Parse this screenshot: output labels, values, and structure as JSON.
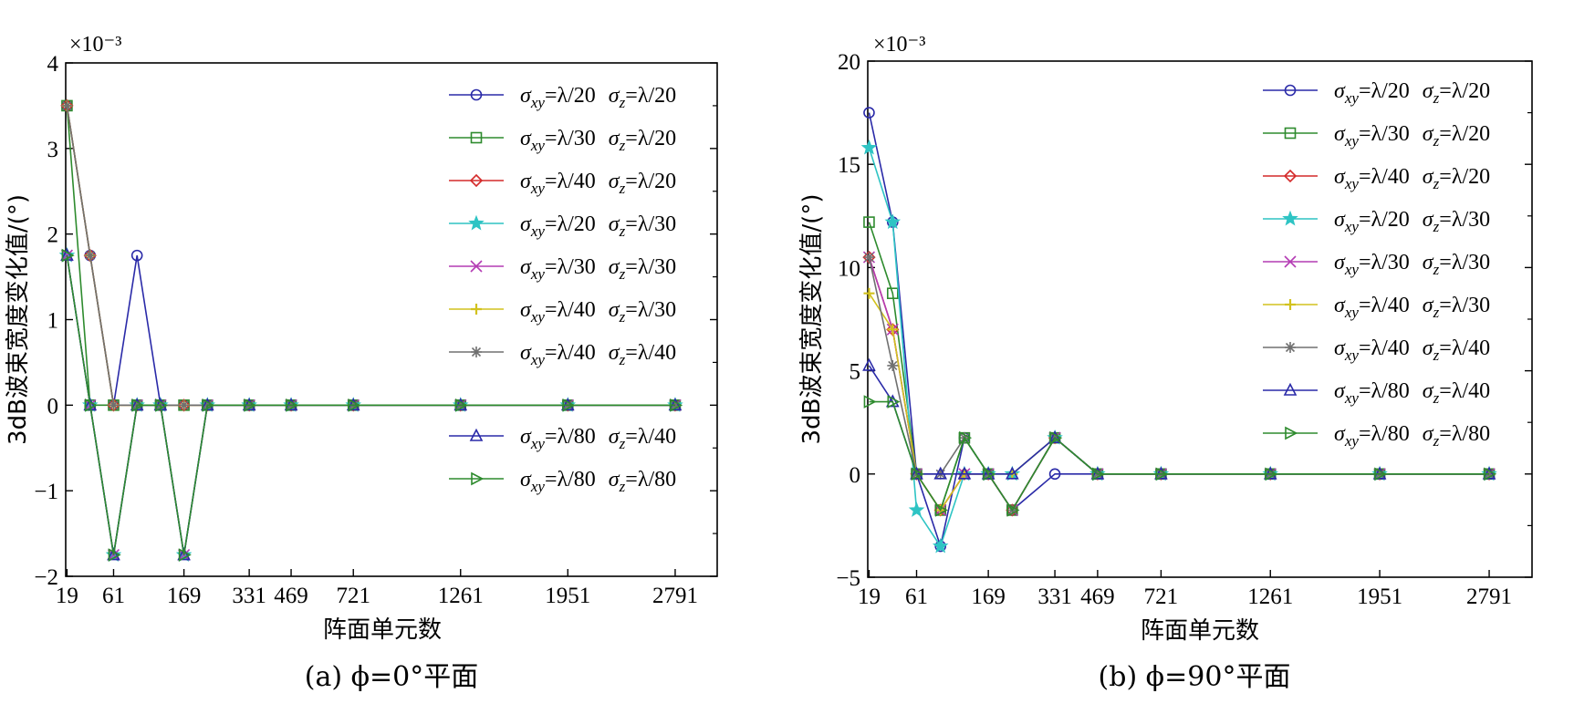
{
  "chart_data": [
    {
      "type": "line",
      "caption": "(a) ϕ=0°平面",
      "xlabel": "阵面单元数",
      "ylabel": "3dB波束宽度变化值/(°)",
      "y_multiplier_label": "×10⁻³",
      "x": [
        19,
        37,
        61,
        91,
        127,
        169,
        217,
        331,
        469,
        721,
        1261,
        1951,
        2791
      ],
      "x_tick_labels": [
        "19",
        "61",
        "169",
        "331",
        "469",
        "721",
        "1261",
        "1951",
        "2791"
      ],
      "y_ticks": [
        -2,
        -1,
        0,
        1,
        2,
        3,
        4
      ],
      "y_tick_labels": [
        "−2",
        "−1",
        "0",
        "1",
        "2",
        "3",
        "4"
      ],
      "ylim": [
        -2,
        4
      ],
      "grid": false,
      "legend_position": "top-right",
      "series": [
        {
          "name": "σxy=λ/20 σz=λ/20",
          "color": "#2a2aa8",
          "marker": "circle",
          "values": [
            3.5,
            1.75,
            0,
            1.75,
            0,
            0,
            0,
            0,
            0,
            0,
            0,
            0,
            0
          ]
        },
        {
          "name": "σxy=λ/30 σz=λ/20",
          "color": "#2e8b2e",
          "marker": "square",
          "values": [
            3.5,
            0,
            0,
            0,
            0,
            0,
            0,
            0,
            0,
            0,
            0,
            0,
            0
          ]
        },
        {
          "name": "σxy=λ/40 σz=λ/20",
          "color": "#d42a2a",
          "marker": "diamond",
          "values": [
            3.5,
            1.75,
            0,
            0,
            0,
            0,
            0,
            0,
            0,
            0,
            0,
            0,
            0
          ]
        },
        {
          "name": "σxy=λ/20 σz=λ/30",
          "color": "#2ec4c4",
          "marker": "star",
          "values": [
            1.75,
            0,
            -1.75,
            0,
            0,
            -1.75,
            0,
            0,
            0,
            0,
            0,
            0,
            0
          ]
        },
        {
          "name": "σxy=λ/30 σz=λ/30",
          "color": "#b43cb4",
          "marker": "x",
          "values": [
            1.75,
            0,
            -1.75,
            0,
            0,
            -1.75,
            0,
            0,
            0,
            0,
            0,
            0,
            0
          ]
        },
        {
          "name": "σxy=λ/40 σz=λ/30",
          "color": "#d2c21e",
          "marker": "plus",
          "values": [
            3.5,
            1.75,
            0,
            0,
            0,
            0,
            0,
            0,
            0,
            0,
            0,
            0,
            0
          ]
        },
        {
          "name": "σxy=λ/40 σz=λ/40",
          "color": "#707070",
          "marker": "asterisk",
          "values": [
            3.5,
            1.75,
            0,
            0,
            0,
            0,
            0,
            0,
            0,
            0,
            0,
            0,
            0
          ]
        },
        {
          "name": "σxy=λ/80 σz=λ/40",
          "color": "#2a2aa8",
          "marker": "triangle",
          "values": [
            1.75,
            0,
            -1.75,
            0,
            0,
            -1.75,
            0,
            0,
            0,
            0,
            0,
            0,
            0
          ]
        },
        {
          "name": "σxy=λ/80 σz=λ/80",
          "color": "#2e8b2e",
          "marker": "triangle-right",
          "values": [
            1.75,
            0,
            -1.75,
            0,
            0,
            -1.75,
            0,
            0,
            0,
            0,
            0,
            0,
            0
          ]
        }
      ]
    },
    {
      "type": "line",
      "caption": "(b) ϕ=90°平面",
      "xlabel": "阵面单元数",
      "ylabel": "3dB波束宽度变化值/(°)",
      "y_multiplier_label": "×10⁻³",
      "x": [
        19,
        37,
        61,
        91,
        127,
        169,
        217,
        331,
        469,
        721,
        1261,
        1951,
        2791
      ],
      "x_tick_labels": [
        "19",
        "61",
        "169",
        "331",
        "469",
        "721",
        "1261",
        "1951",
        "2791"
      ],
      "y_ticks": [
        -5,
        0,
        5,
        10,
        15,
        20
      ],
      "y_tick_labels": [
        "−5",
        "0",
        "5",
        "10",
        "15",
        "20"
      ],
      "ylim": [
        -5,
        20
      ],
      "grid": false,
      "legend_position": "top-right",
      "series": [
        {
          "name": "σxy=λ/20 σz=λ/20",
          "color": "#2a2aa8",
          "marker": "circle",
          "values": [
            17.5,
            12.2,
            0,
            -3.5,
            1.75,
            0,
            -1.75,
            0,
            0,
            0,
            0,
            0,
            0
          ]
        },
        {
          "name": "σxy=λ/30 σz=λ/20",
          "color": "#2e8b2e",
          "marker": "square",
          "values": [
            12.2,
            8.75,
            0,
            -1.75,
            1.75,
            0,
            -1.75,
            1.75,
            0,
            0,
            0,
            0,
            0
          ]
        },
        {
          "name": "σxy=λ/40 σz=λ/20",
          "color": "#d42a2a",
          "marker": "diamond",
          "values": [
            10.5,
            7.0,
            0,
            -1.75,
            0,
            0,
            -1.75,
            1.75,
            0,
            0,
            0,
            0,
            0
          ]
        },
        {
          "name": "σxy=λ/20 σz=λ/30",
          "color": "#2ec4c4",
          "marker": "star",
          "values": [
            15.8,
            12.2,
            -1.75,
            -3.5,
            0,
            0,
            0,
            1.75,
            0,
            0,
            0,
            0,
            0
          ]
        },
        {
          "name": "σxy=λ/30 σz=λ/30",
          "color": "#b43cb4",
          "marker": "x",
          "values": [
            10.5,
            7.0,
            0,
            -1.75,
            0,
            0,
            -1.75,
            1.75,
            0,
            0,
            0,
            0,
            0
          ]
        },
        {
          "name": "σxy=λ/40 σz=λ/30",
          "color": "#d2c21e",
          "marker": "plus",
          "values": [
            8.75,
            7.0,
            0,
            -1.75,
            0,
            0,
            0,
            1.75,
            0,
            0,
            0,
            0,
            0
          ]
        },
        {
          "name": "σxy=λ/40 σz=λ/40",
          "color": "#707070",
          "marker": "asterisk",
          "values": [
            10.5,
            5.25,
            0,
            0,
            1.75,
            0,
            -1.75,
            1.75,
            0,
            0,
            0,
            0,
            0
          ]
        },
        {
          "name": "σxy=λ/80 σz=λ/40",
          "color": "#2a2aa8",
          "marker": "triangle",
          "values": [
            5.25,
            3.5,
            0,
            0,
            0,
            0,
            0,
            1.75,
            0,
            0,
            0,
            0,
            0
          ]
        },
        {
          "name": "σxy=λ/80 σz=λ/80",
          "color": "#2e8b2e",
          "marker": "triangle-right",
          "values": [
            3.5,
            3.5,
            0,
            -1.75,
            1.75,
            0,
            -1.75,
            1.75,
            0,
            0,
            0,
            0,
            0
          ]
        }
      ]
    }
  ]
}
